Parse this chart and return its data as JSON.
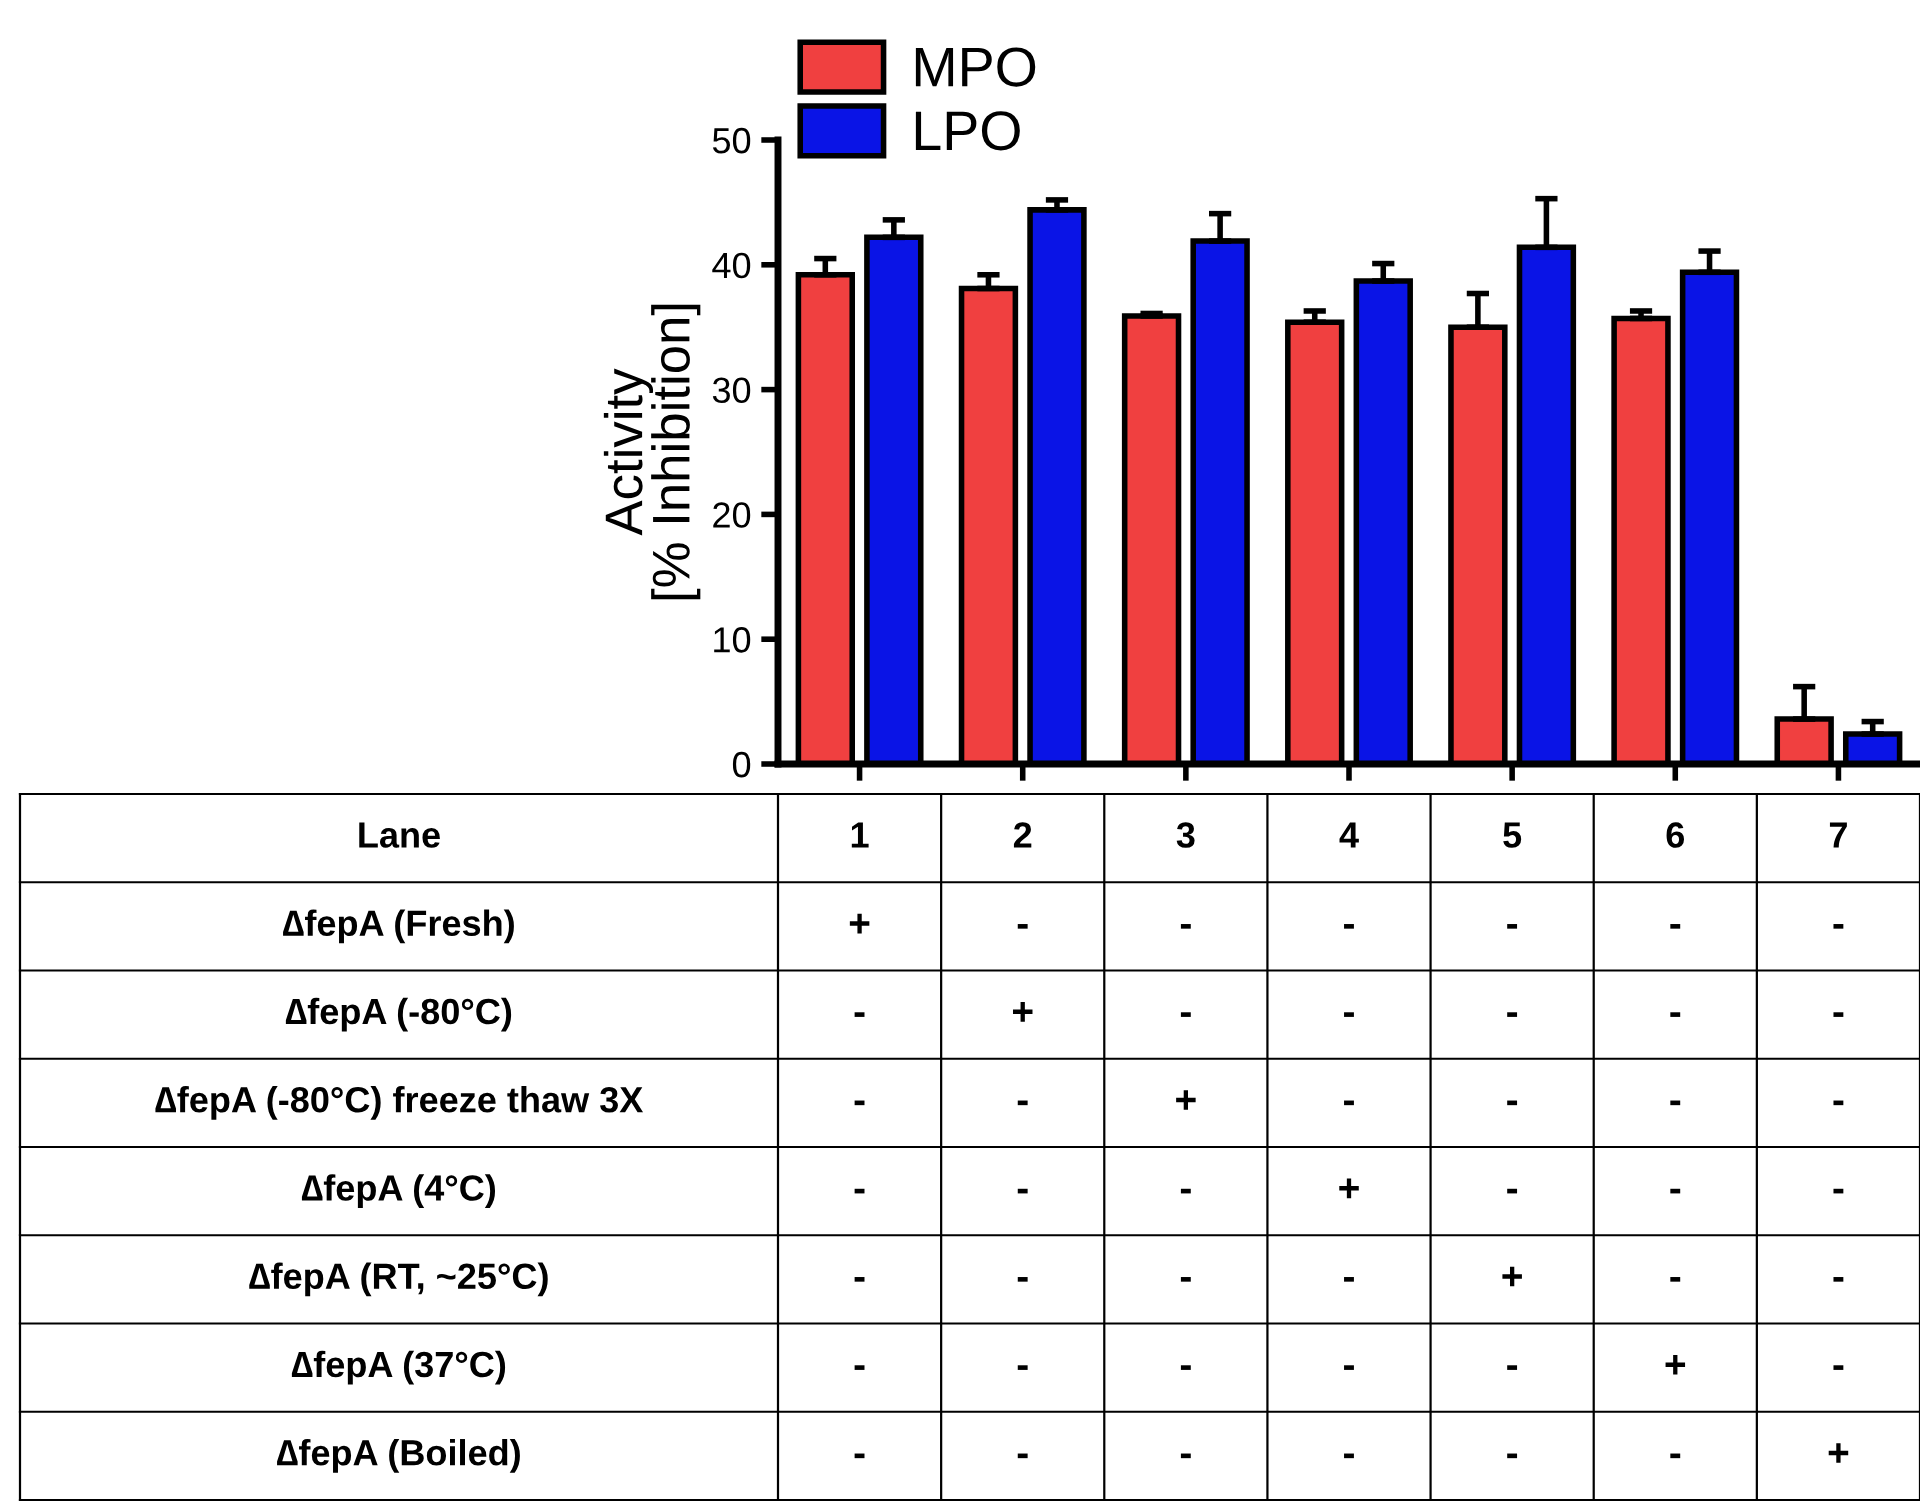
{
  "chart_data": {
    "type": "bar",
    "ylabel": "Activity\n[% Inhibition]",
    "categories": [
      "1",
      "2",
      "3",
      "4",
      "5",
      "6",
      "7"
    ],
    "series": [
      {
        "name": "MPO",
        "color": "#f04040",
        "values": [
          39.2,
          38.1,
          35.9,
          35.4,
          35.0,
          35.7,
          3.6
        ],
        "errors": [
          [
            39.2,
            40.5
          ],
          [
            38.1,
            39.2
          ],
          [
            35.9,
            36.1
          ],
          [
            35.4,
            36.3
          ],
          [
            35.0,
            37.7
          ],
          [
            35.7,
            36.3
          ],
          [
            3.6,
            6.2
          ]
        ]
      },
      {
        "name": "LPO",
        "color": "#0a14e6",
        "values": [
          42.2,
          44.4,
          41.9,
          38.7,
          41.4,
          39.4,
          2.4
        ],
        "errors": [
          [
            42.2,
            43.6
          ],
          [
            44.4,
            45.2
          ],
          [
            41.9,
            44.1
          ],
          [
            38.7,
            40.1
          ],
          [
            41.4,
            45.3
          ],
          [
            39.4,
            41.1
          ],
          [
            2.4,
            3.4
          ]
        ]
      }
    ],
    "ylim": [
      0,
      50
    ],
    "yticks": [
      0,
      10,
      20,
      30,
      40,
      50
    ],
    "grid": false,
    "legend": "top left",
    "tick_labels": "y",
    "annotations": [
      "Lane",
      "∆fepA (Fresh)",
      "+",
      "-",
      "-",
      "-",
      "-",
      "-",
      "-",
      "∆fepA (-80°C)",
      "-",
      "+",
      "-",
      "-",
      "-",
      "-",
      "-",
      "∆fepA (-80°C) freeze thaw 3X",
      "-",
      "-",
      "+",
      "-",
      "-",
      "-",
      "-",
      "∆fepA (4°C)",
      "-",
      "-",
      "-",
      "+",
      "-",
      "-",
      "-",
      "∆fepA (RT, ~25°C)",
      "-",
      "-",
      "-",
      "-",
      "+",
      "-",
      "-",
      "∆fepA (37°C)",
      "-",
      "-",
      "-",
      "-",
      "-",
      "+",
      "-",
      "∆fepA (Boiled)",
      "-",
      "-",
      "-",
      "-",
      "-",
      "-",
      "+"
    ]
  }
}
